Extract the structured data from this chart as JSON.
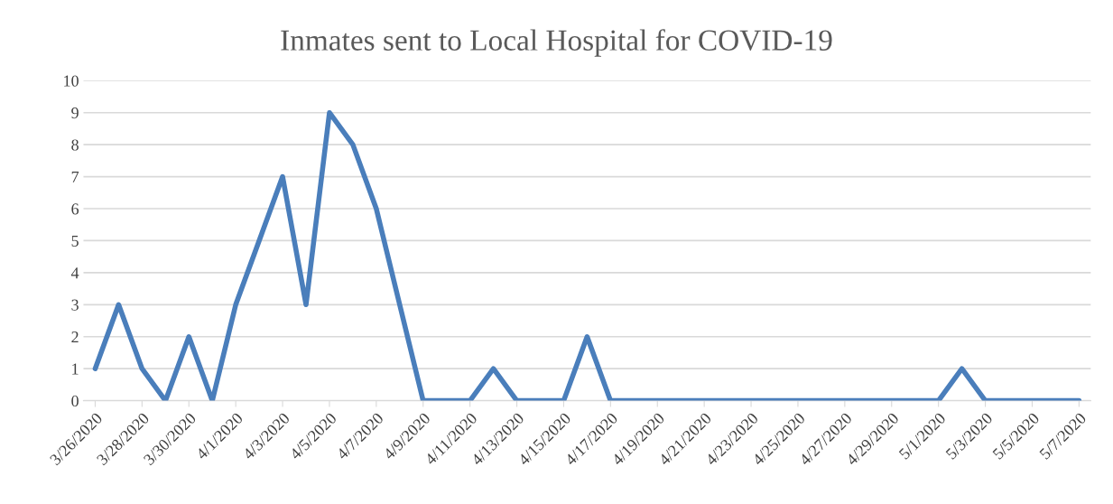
{
  "chart_data": {
    "type": "line",
    "title": "Inmates sent to Local Hospital for COVID-19",
    "x": [
      "2020-03-26",
      "2020-03-27",
      "2020-03-28",
      "2020-03-29",
      "2020-03-30",
      "2020-03-31",
      "2020-04-01",
      "2020-04-02",
      "2020-04-03",
      "2020-04-04",
      "2020-04-05",
      "2020-04-06",
      "2020-04-07",
      "2020-04-08",
      "2020-04-09",
      "2020-04-10",
      "2020-04-11",
      "2020-04-12",
      "2020-04-13",
      "2020-04-14",
      "2020-04-15",
      "2020-04-16",
      "2020-04-17",
      "2020-04-18",
      "2020-04-19",
      "2020-04-20",
      "2020-04-21",
      "2020-04-22",
      "2020-04-23",
      "2020-04-24",
      "2020-04-25",
      "2020-04-26",
      "2020-04-27",
      "2020-04-28",
      "2020-04-29",
      "2020-04-30",
      "2020-05-01",
      "2020-05-02",
      "2020-05-03",
      "2020-05-04",
      "2020-05-05",
      "2020-05-06",
      "2020-05-07"
    ],
    "series": [
      {
        "color": "#4a7ebb",
        "values": [
          1,
          3,
          1,
          0,
          2,
          0,
          3,
          5,
          7,
          3,
          9,
          8,
          6,
          3,
          0,
          0,
          0,
          1,
          0,
          0,
          0,
          2,
          0,
          0,
          0,
          0,
          0,
          0,
          0,
          0,
          0,
          0,
          0,
          0,
          0,
          0,
          0,
          1,
          0,
          0,
          0,
          0,
          0
        ]
      }
    ],
    "xlim": [
      "2020-03-25T12:00",
      "2020-05-07T12:00"
    ],
    "xticks": [
      {
        "value": "2020-03-26",
        "label": "3/26/2020"
      },
      {
        "value": "2020-03-28",
        "label": "3/28/2020"
      },
      {
        "value": "2020-03-30",
        "label": "3/30/2020"
      },
      {
        "value": "2020-04-01",
        "label": "4/1/2020"
      },
      {
        "value": "2020-04-03",
        "label": "4/3/2020"
      },
      {
        "value": "2020-04-05",
        "label": "4/5/2020"
      },
      {
        "value": "2020-04-07",
        "label": "4/7/2020"
      },
      {
        "value": "2020-04-09",
        "label": "4/9/2020"
      },
      {
        "value": "2020-04-11",
        "label": "4/11/2020"
      },
      {
        "value": "2020-04-13",
        "label": "4/13/2020"
      },
      {
        "value": "2020-04-15",
        "label": "4/15/2020"
      },
      {
        "value": "2020-04-17",
        "label": "4/17/2020"
      },
      {
        "value": "2020-04-19",
        "label": "4/19/2020"
      },
      {
        "value": "2020-04-21",
        "label": "4/21/2020"
      },
      {
        "value": "2020-04-23",
        "label": "4/23/2020"
      },
      {
        "value": "2020-04-25",
        "label": "4/25/2020"
      },
      {
        "value": "2020-04-27",
        "label": "4/27/2020"
      },
      {
        "value": "2020-04-29",
        "label": "4/29/2020"
      },
      {
        "value": "2020-05-01",
        "label": "5/1/2020"
      },
      {
        "value": "2020-05-03",
        "label": "5/3/2020"
      },
      {
        "value": "2020-05-05",
        "label": "5/5/2020"
      },
      {
        "value": "2020-05-07",
        "label": "5/7/2020"
      }
    ],
    "ylim": [
      0,
      10
    ],
    "yticks": [
      0,
      1,
      2,
      3,
      4,
      5,
      6,
      7,
      8,
      9,
      10
    ],
    "grid": "y",
    "legend": false,
    "marker": "none",
    "line_style": "solid"
  }
}
